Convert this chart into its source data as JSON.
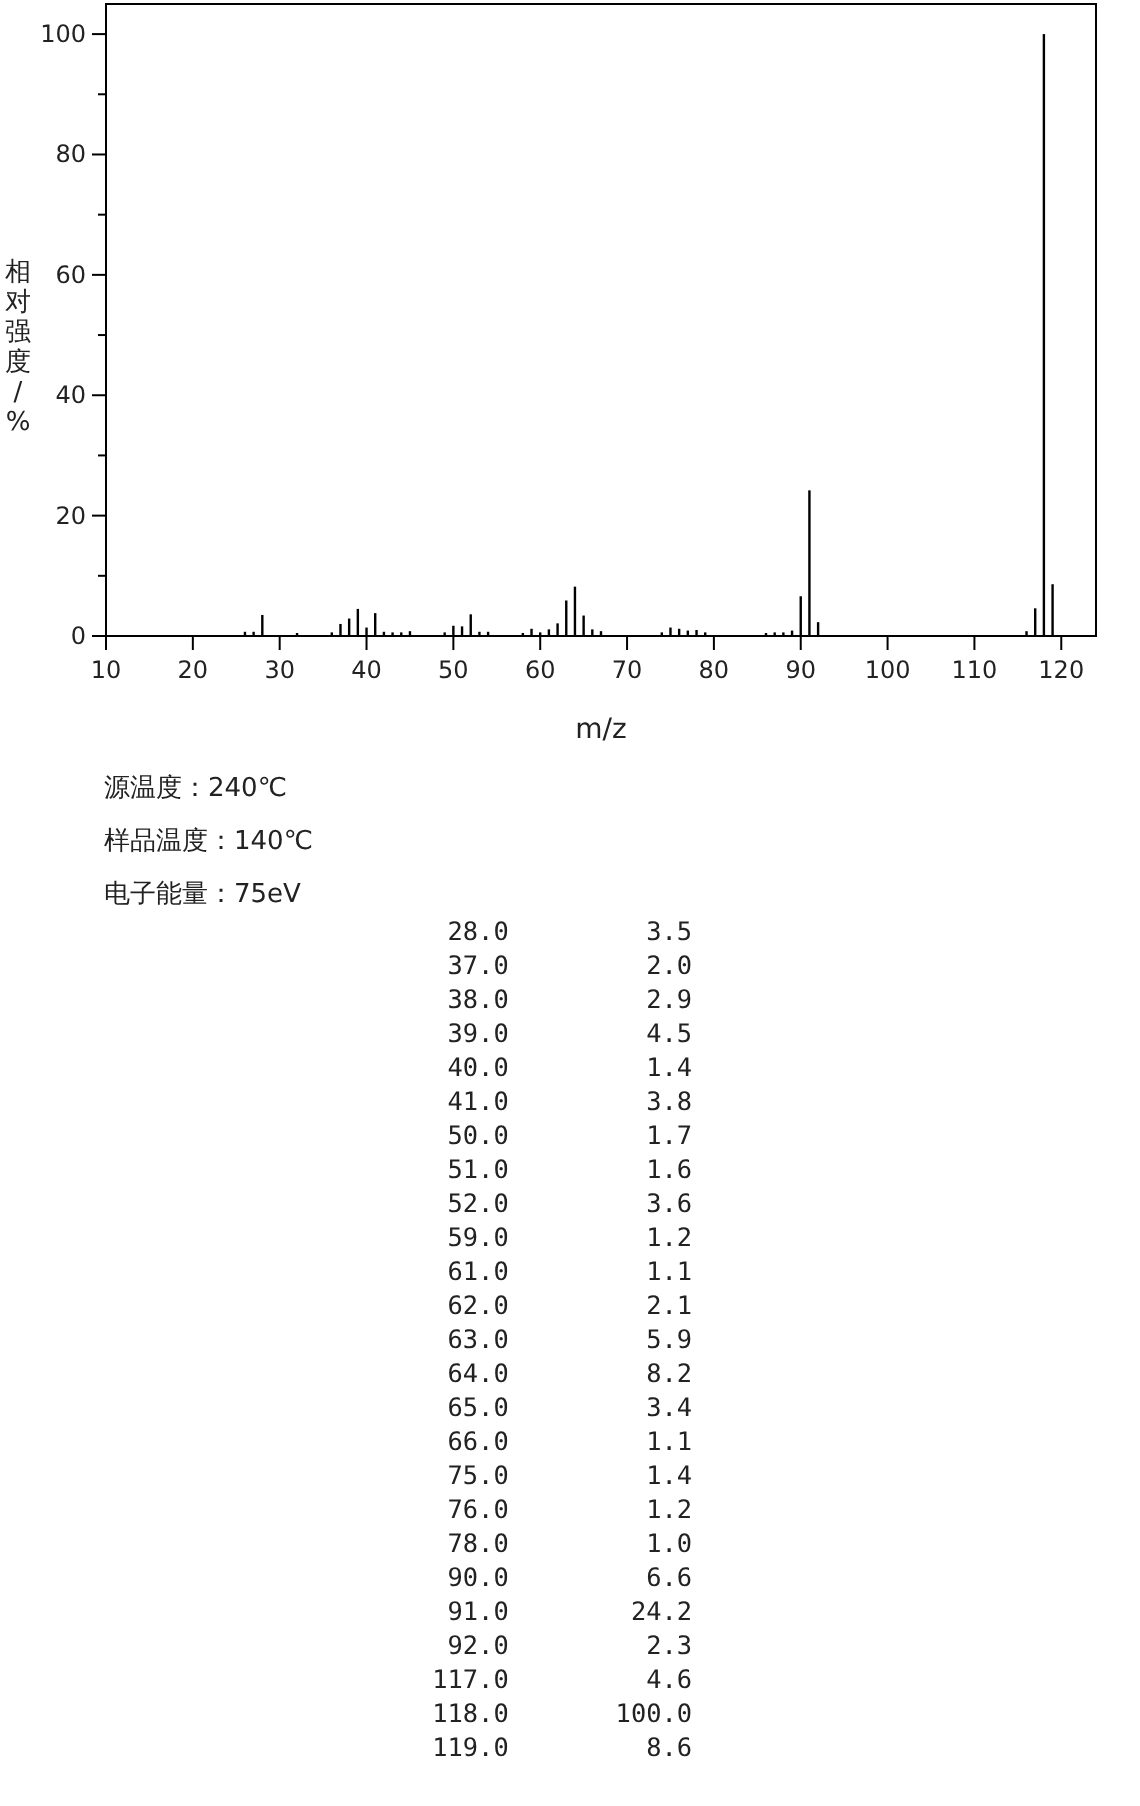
{
  "chart_data": {
    "type": "bar",
    "xlabel": "m/z",
    "ylabel": "相对强度/%",
    "x": [
      26,
      27,
      28,
      32,
      36,
      37,
      38,
      39,
      40,
      41,
      42,
      43,
      44,
      45,
      49,
      50,
      51,
      52,
      53,
      54,
      58,
      59,
      60,
      61,
      62,
      63,
      64,
      65,
      66,
      67,
      74,
      75,
      76,
      77,
      78,
      79,
      86,
      87,
      88,
      89,
      90,
      91,
      92,
      116,
      117,
      118,
      119
    ],
    "values": [
      0.7,
      0.7,
      3.5,
      0.5,
      0.6,
      2.0,
      2.9,
      4.5,
      1.4,
      3.8,
      0.7,
      0.6,
      0.6,
      0.8,
      0.6,
      1.7,
      1.6,
      3.6,
      0.7,
      0.7,
      0.5,
      1.2,
      0.6,
      1.1,
      2.1,
      5.9,
      8.2,
      3.4,
      1.1,
      0.8,
      0.6,
      1.4,
      1.2,
      0.9,
      1.0,
      0.6,
      0.5,
      0.6,
      0.6,
      0.9,
      6.6,
      24.2,
      2.3,
      0.8,
      4.6,
      100.0,
      8.6
    ],
    "color": "#000000",
    "xlim": [
      10,
      124
    ],
    "xticks": [
      10,
      20,
      30,
      40,
      50,
      60,
      70,
      80,
      90,
      100,
      110,
      120
    ],
    "ylim": [
      0,
      105
    ],
    "yticks": [
      0,
      {
        "value": 10,
        "label": null
      },
      20,
      {
        "value": 30,
        "label": null
      },
      40,
      {
        "value": 50,
        "label": null
      },
      60,
      {
        "value": 70,
        "label": null
      },
      80,
      {
        "value": 90,
        "label": null
      },
      100
    ],
    "grid": false,
    "annotations": [
      "源温度：240℃",
      "样品温度：140℃",
      "电子能量：75eV",
      "28.0         3.5",
      "37.0         2.0",
      "38.0         2.9",
      "39.0         4.5",
      "40.0         1.4",
      "41.0         3.8",
      "50.0         1.7",
      "51.0         1.6",
      "52.0         3.6",
      "59.0         1.2",
      "61.0         1.1",
      "62.0         2.1",
      "63.0         5.9",
      "64.0         8.2",
      "65.0         3.4",
      "66.0         1.1",
      "75.0         1.4",
      "76.0         1.2",
      "78.0         1.0",
      "90.0         6.6",
      "91.0        24.2",
      "92.0         2.3",
      "117.0         4.6",
      "118.0       100.0",
      "119.0         8.6"
    ]
  }
}
